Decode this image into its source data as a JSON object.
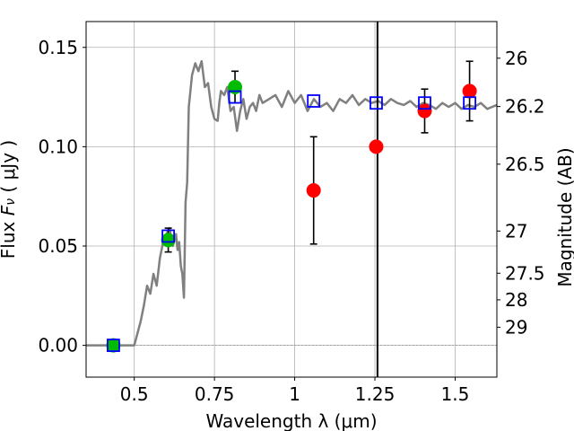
{
  "chart_data": {
    "type": "scatter",
    "xlabel": "Wavelength  λ (μm)",
    "ylabel": "Flux  F_ν  ( μJy )",
    "ylabel_parts": {
      "pre": "Flux  ",
      "sym": "F",
      "sub": "ν",
      "post": "  ( μJy )"
    },
    "ylabel_right": "Magnitude (AB)",
    "xlim": [
      0.35,
      1.63
    ],
    "ylim": [
      -0.016,
      0.163
    ],
    "grid": true,
    "x_ticks": [
      {
        "value": 0.5,
        "label": "0.5"
      },
      {
        "value": 0.75,
        "label": "0.75"
      },
      {
        "value": 1.0,
        "label": "1"
      },
      {
        "value": 1.25,
        "label": "1.25"
      },
      {
        "value": 1.5,
        "label": "1.5"
      }
    ],
    "y_ticks": [
      {
        "value": 0.0,
        "label": "0.00"
      },
      {
        "value": 0.05,
        "label": "0.05"
      },
      {
        "value": 0.1,
        "label": "0.10"
      },
      {
        "value": 0.15,
        "label": "0.15"
      }
    ],
    "right_ticks": [
      {
        "mag": 26,
        "label": "26"
      },
      {
        "mag": 26.2,
        "label": "26.2"
      },
      {
        "mag": 26.5,
        "label": "26.5"
      },
      {
        "mag": 27,
        "label": "27"
      },
      {
        "mag": 27.5,
        "label": "27.5"
      },
      {
        "mag": 28,
        "label": "28"
      },
      {
        "mag": 29,
        "label": "29"
      }
    ],
    "vline_x": 1.258,
    "template_spectrum": {
      "color": "#808080",
      "x": [
        0.35,
        0.4,
        0.45,
        0.48,
        0.5,
        0.52,
        0.53,
        0.54,
        0.55,
        0.56,
        0.57,
        0.58,
        0.59,
        0.6,
        0.61,
        0.62,
        0.63,
        0.635,
        0.64,
        0.645,
        0.65,
        0.655,
        0.66,
        0.665,
        0.67,
        0.68,
        0.69,
        0.7,
        0.71,
        0.72,
        0.73,
        0.74,
        0.75,
        0.76,
        0.765,
        0.77,
        0.78,
        0.79,
        0.8,
        0.81,
        0.82,
        0.83,
        0.84,
        0.85,
        0.86,
        0.87,
        0.88,
        0.89,
        0.9,
        0.92,
        0.94,
        0.96,
        0.98,
        1.0,
        1.02,
        1.04,
        1.06,
        1.08,
        1.1,
        1.12,
        1.14,
        1.16,
        1.18,
        1.2,
        1.22,
        1.24,
        1.26,
        1.28,
        1.3,
        1.32,
        1.34,
        1.36,
        1.38,
        1.4,
        1.42,
        1.44,
        1.46,
        1.48,
        1.5,
        1.52,
        1.54,
        1.56,
        1.58,
        1.6,
        1.63
      ],
      "y": [
        0.0,
        0.0,
        0.0,
        0.0,
        0.0,
        0.012,
        0.02,
        0.03,
        0.026,
        0.036,
        0.03,
        0.044,
        0.052,
        0.056,
        0.059,
        0.05,
        0.056,
        0.048,
        0.052,
        0.04,
        0.036,
        0.024,
        0.072,
        0.082,
        0.12,
        0.136,
        0.142,
        0.138,
        0.143,
        0.13,
        0.132,
        0.12,
        0.114,
        0.113,
        0.122,
        0.128,
        0.126,
        0.13,
        0.118,
        0.12,
        0.108,
        0.118,
        0.124,
        0.114,
        0.12,
        0.122,
        0.118,
        0.126,
        0.122,
        0.124,
        0.126,
        0.12,
        0.128,
        0.122,
        0.126,
        0.118,
        0.124,
        0.12,
        0.122,
        0.118,
        0.124,
        0.122,
        0.126,
        0.121,
        0.124,
        0.122,
        0.123,
        0.121,
        0.124,
        0.122,
        0.121,
        0.123,
        0.12,
        0.122,
        0.121,
        0.119,
        0.122,
        0.12,
        0.122,
        0.119,
        0.121,
        0.12,
        0.122,
        0.119,
        0.121
      ]
    },
    "model_fluxes": {
      "color": "#0000ff",
      "x": [
        0.435,
        0.606,
        0.814,
        1.059,
        1.254,
        1.405,
        1.545
      ],
      "y": [
        0.0,
        0.055,
        0.125,
        0.123,
        0.122,
        0.122,
        0.122
      ]
    },
    "detections_green": {
      "color": "#00bb00",
      "x": [
        0.435,
        0.606,
        0.814
      ],
      "y": [
        0.0,
        0.053,
        0.13
      ],
      "err": [
        0.0,
        0.006,
        0.008
      ]
    },
    "detections_red": {
      "color": "#ff0000",
      "x": [
        1.059,
        1.254,
        1.405,
        1.545
      ],
      "y": [
        0.078,
        0.1,
        0.118,
        0.128
      ],
      "err": [
        0.027,
        0.0,
        0.011,
        0.015
      ]
    }
  }
}
